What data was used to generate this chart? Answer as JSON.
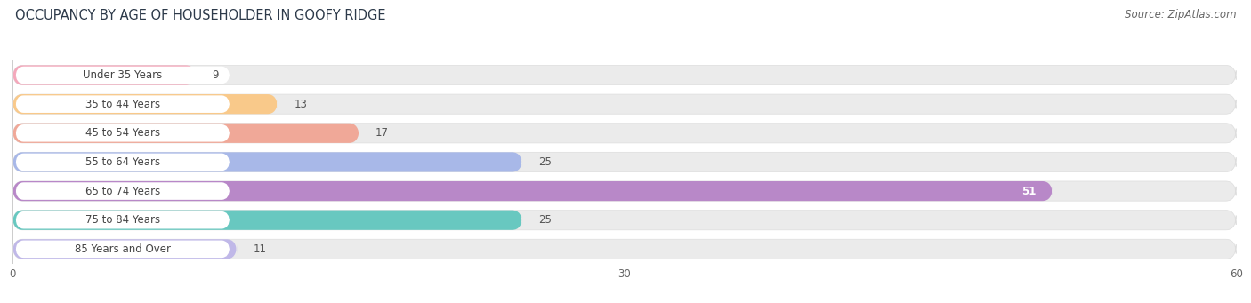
{
  "title": "OCCUPANCY BY AGE OF HOUSEHOLDER IN GOOFY RIDGE",
  "source": "Source: ZipAtlas.com",
  "categories": [
    "Under 35 Years",
    "35 to 44 Years",
    "45 to 54 Years",
    "55 to 64 Years",
    "65 to 74 Years",
    "75 to 84 Years",
    "85 Years and Over"
  ],
  "values": [
    9,
    13,
    17,
    25,
    51,
    25,
    11
  ],
  "bar_colors": [
    "#f4a8bb",
    "#f9c98a",
    "#f0a898",
    "#a8b8e8",
    "#b888c8",
    "#68c8c0",
    "#c0b8e8"
  ],
  "xlim": [
    0,
    60
  ],
  "xticks": [
    0,
    30,
    60
  ],
  "bg_color": "#ffffff",
  "bar_bg_color": "#ebebeb",
  "label_bg_color": "#ffffff",
  "title_fontsize": 10.5,
  "source_fontsize": 8.5,
  "bar_label_fontsize": 8.5,
  "value_fontsize": 8.5
}
